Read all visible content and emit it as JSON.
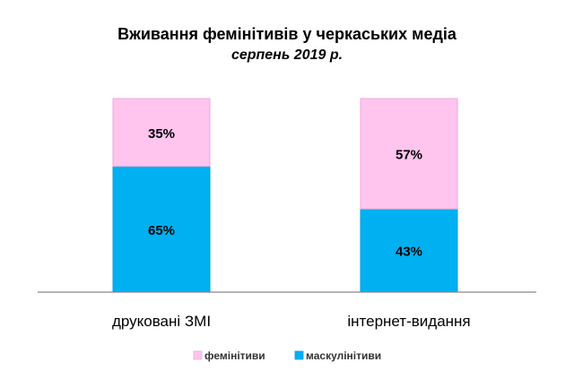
{
  "chart_data": {
    "type": "bar",
    "stacked": true,
    "title": "Вживання фемінітивів у черкаських медіа",
    "subtitle": "серпень 2019 р.",
    "categories": [
      "друковані ЗМІ",
      "інтернет-видання"
    ],
    "series": [
      {
        "name": "маскулінітиви",
        "values": [
          65,
          43
        ],
        "labels": [
          "65%",
          "43%"
        ],
        "color": "#00B0F0"
      },
      {
        "name": "фемінітиви",
        "values": [
          35,
          57
        ],
        "labels": [
          "35%",
          "57%"
        ],
        "color": "#FFC5EE"
      }
    ],
    "legend_order": [
      "фемінітиви",
      "маскулінітиви"
    ],
    "ylim": [
      0,
      100
    ],
    "grid": false,
    "legend": "bottom",
    "xlabel": "",
    "ylabel": ""
  }
}
